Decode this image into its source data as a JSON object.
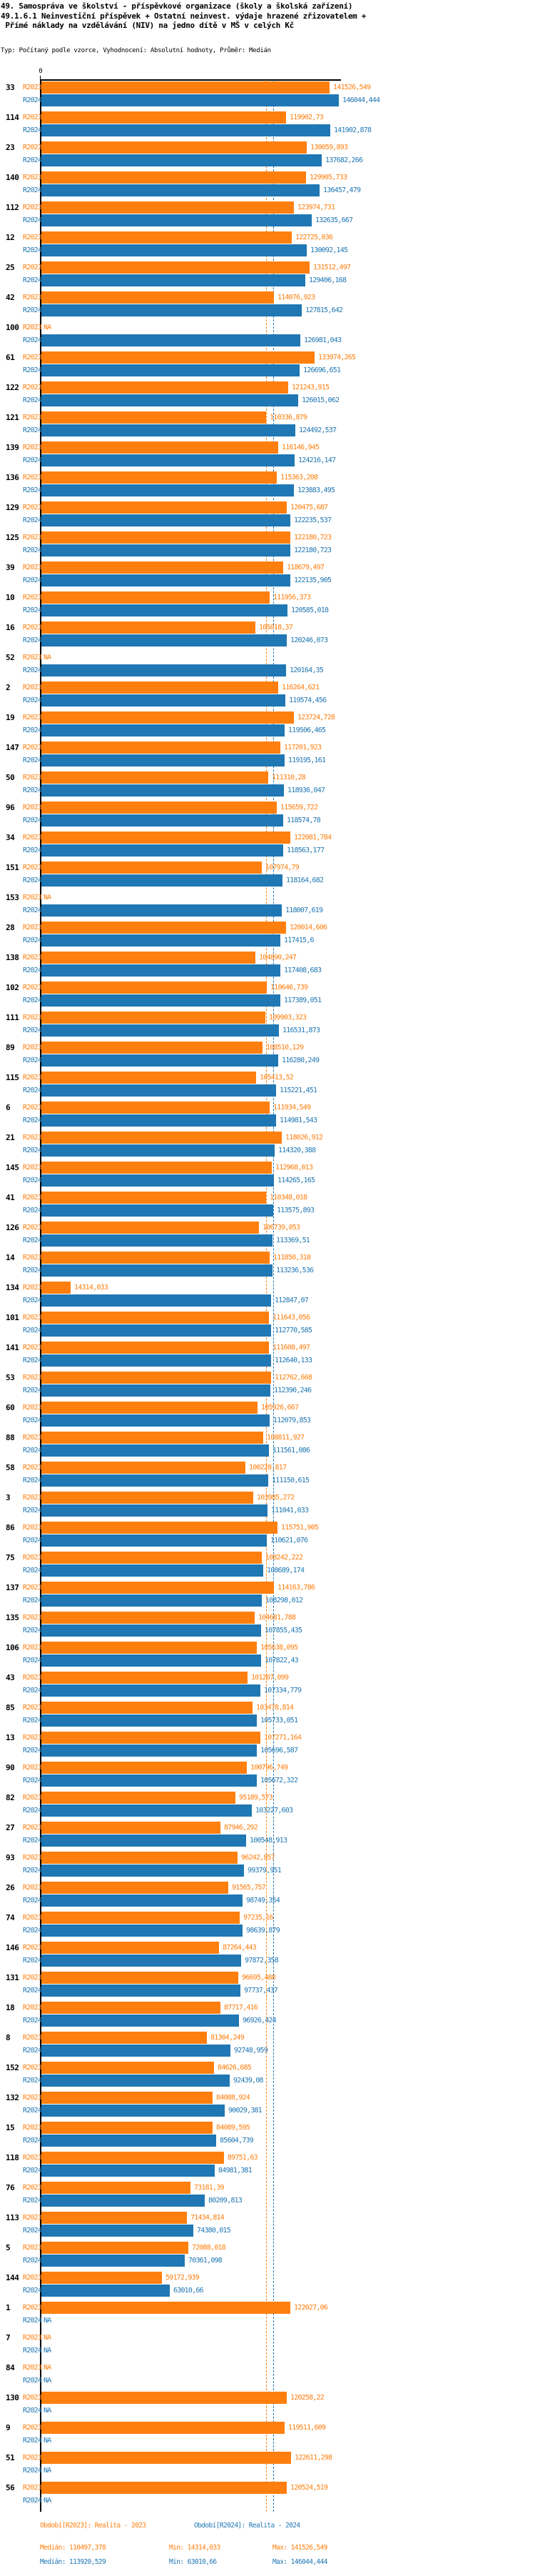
{
  "title": {
    "line1": "49. Samospráva ve školství - příspěvkové organizace (školy a školská zařízení)",
    "line2": "49.1.6.1 Neinvestiční příspěvek + Ostatní neinvest. výdaje hrazené zřizovatelem +",
    "line3": " Přímé náklady na vzdělávání (NIV) na jedno dítě v MŠ v celých Kč",
    "meta": "Typ: Počítaný podle vzorce, Vyhodnocení: Absolutní hodnoty, Průměr: Medián"
  },
  "axis": {
    "zero_label": "0"
  },
  "colors": {
    "r2023": "#ff7f0e",
    "r2024": "#1f77b4",
    "axis": "#000000"
  },
  "footer": {
    "period_r2023": "Období[R2023]: Realita - 2023",
    "period_r2024": "Období[R2024]: Realita - 2024",
    "r2023_median": "Medián: 110497,378",
    "r2023_min": "Min: 14314,033",
    "r2023_max": "Max: 141526,549",
    "r2024_median": "Medián: 113920,529",
    "r2024_min": "Min: 63010,66",
    "r2024_max": "Max: 146044,444"
  },
  "chart_data": {
    "type": "bar",
    "orientation": "horizontal",
    "series_names": [
      "R2023",
      "R2024"
    ],
    "legend_position": "bottom",
    "grid": false,
    "x_axis": {
      "min": 0,
      "tick_labels": [
        "0"
      ],
      "approx_max": 147400
    },
    "medians": {
      "R2023": 110497.378,
      "R2024": 113920.529
    },
    "stats": {
      "R2023": {
        "median": 110497.378,
        "min": 14314.033,
        "max": 141526.549
      },
      "R2024": {
        "median": 113920.529,
        "min": 63010.66,
        "max": 146044.444
      }
    },
    "rows": [
      {
        "id": "33",
        "r2023": "141526,549",
        "r2024": "146044,444"
      },
      {
        "id": "114",
        "r2023": "119902,73",
        "r2024": "141902,878"
      },
      {
        "id": "23",
        "r2023": "130059,893",
        "r2024": "137682,266"
      },
      {
        "id": "140",
        "r2023": "129905,733",
        "r2024": "136457,479"
      },
      {
        "id": "112",
        "r2023": "123974,731",
        "r2024": "132635,667"
      },
      {
        "id": "12",
        "r2023": "122725,036",
        "r2024": "130092,145"
      },
      {
        "id": "25",
        "r2023": "131512,497",
        "r2024": "129406,168"
      },
      {
        "id": "42",
        "r2023": "114076,923",
        "r2024": "127815,642"
      },
      {
        "id": "100",
        "r2023": "NA",
        "r2024": "126981,043"
      },
      {
        "id": "61",
        "r2023": "133974,265",
        "r2024": "126696,651"
      },
      {
        "id": "122",
        "r2023": "121243,915",
        "r2024": "126015,062"
      },
      {
        "id": "121",
        "r2023": "110336,879",
        "r2024": "124492,537"
      },
      {
        "id": "139",
        "r2023": "116146,945",
        "r2024": "124216,147"
      },
      {
        "id": "136",
        "r2023": "115363,208",
        "r2024": "123883,495"
      },
      {
        "id": "129",
        "r2023": "120475,687",
        "r2024": "122235,537"
      },
      {
        "id": "125",
        "r2023": "122180,723",
        "r2024": "122180,723"
      },
      {
        "id": "39",
        "r2023": "118679,497",
        "r2024": "122135,905"
      },
      {
        "id": "10",
        "r2023": "111956,373",
        "r2024": "120585,018"
      },
      {
        "id": "16",
        "r2023": "105018,37",
        "r2024": "120246,073"
      },
      {
        "id": "52",
        "r2023": "NA",
        "r2024": "120164,35"
      },
      {
        "id": "2",
        "r2023": "116264,621",
        "r2024": "119574,456"
      },
      {
        "id": "19",
        "r2023": "123724,728",
        "r2024": "119506,465"
      },
      {
        "id": "147",
        "r2023": "117201,923",
        "r2024": "119195,161"
      },
      {
        "id": "50",
        "r2023": "111310,28",
        "r2024": "118936,047"
      },
      {
        "id": "96",
        "r2023": "115659,722",
        "r2024": "118574,78"
      },
      {
        "id": "34",
        "r2023": "122081,784",
        "r2024": "118563,177"
      },
      {
        "id": "151",
        "r2023": "107974,79",
        "r2024": "118164,682"
      },
      {
        "id": "153",
        "r2023": "NA",
        "r2024": "118007,619"
      },
      {
        "id": "28",
        "r2023": "120014,606",
        "r2024": "117415,6"
      },
      {
        "id": "138",
        "r2023": "104890,247",
        "r2024": "117408,683"
      },
      {
        "id": "102",
        "r2023": "110646,739",
        "r2024": "117389,051"
      },
      {
        "id": "111",
        "r2023": "109903,323",
        "r2024": "116531,873"
      },
      {
        "id": "89",
        "r2023": "108510,129",
        "r2024": "116280,249"
      },
      {
        "id": "115",
        "r2023": "105413,52",
        "r2024": "115221,451"
      },
      {
        "id": "6",
        "r2023": "111934,549",
        "r2024": "114981,543"
      },
      {
        "id": "21",
        "r2023": "118026,912",
        "r2024": "114320,388"
      },
      {
        "id": "145",
        "r2023": "112968,013",
        "r2024": "114265,165"
      },
      {
        "id": "41",
        "r2023": "110348,018",
        "r2024": "113575,893"
      },
      {
        "id": "126",
        "r2023": "106739,053",
        "r2024": "113369,51"
      },
      {
        "id": "14",
        "r2023": "111850,318",
        "r2024": "113236,536"
      },
      {
        "id": "134",
        "r2023": "14314,033",
        "r2024": "112847,07"
      },
      {
        "id": "101",
        "r2023": "111643,056",
        "r2024": "112770,585"
      },
      {
        "id": "141",
        "r2023": "111608,497",
        "r2024": "112640,133"
      },
      {
        "id": "53",
        "r2023": "112762,668",
        "r2024": "112390,246"
      },
      {
        "id": "60",
        "r2023": "105926,667",
        "r2024": "112079,853"
      },
      {
        "id": "88",
        "r2023": "108811,927",
        "r2024": "111561,086"
      },
      {
        "id": "58",
        "r2023": "100228,817",
        "r2024": "111150,615"
      },
      {
        "id": "3",
        "r2023": "103985,272",
        "r2024": "111041,033"
      },
      {
        "id": "86",
        "r2023": "115751,905",
        "r2024": "110621,076"
      },
      {
        "id": "75",
        "r2023": "108242,222",
        "r2024": "108689,174"
      },
      {
        "id": "137",
        "r2023": "114163,786",
        "r2024": "108298,012"
      },
      {
        "id": "135",
        "r2023": "104681,788",
        "r2024": "107855,435"
      },
      {
        "id": "106",
        "r2023": "105638,095",
        "r2024": "107822,43"
      },
      {
        "id": "43",
        "r2023": "101207,099",
        "r2024": "107334,779"
      },
      {
        "id": "85",
        "r2023": "103478,814",
        "r2024": "105733,051"
      },
      {
        "id": "13",
        "r2023": "107271,164",
        "r2024": "105696,587"
      },
      {
        "id": "90",
        "r2023": "100796,749",
        "r2024": "105672,322"
      },
      {
        "id": "82",
        "r2023": "95189,573",
        "r2024": "103227,603"
      },
      {
        "id": "27",
        "r2023": "87946,292",
        "r2024": "100548,913"
      },
      {
        "id": "93",
        "r2023": "96242,857",
        "r2024": "99379,951"
      },
      {
        "id": "26",
        "r2023": "91565,757",
        "r2024": "98749,354"
      },
      {
        "id": "74",
        "r2023": "97235,16",
        "r2024": "98639,879"
      },
      {
        "id": "146",
        "r2023": "87264,443",
        "r2024": "97872,358"
      },
      {
        "id": "131",
        "r2023": "96695,488",
        "r2024": "97737,437"
      },
      {
        "id": "18",
        "r2023": "87717,416",
        "r2024": "96926,424"
      },
      {
        "id": "8",
        "r2023": "81304,249",
        "r2024": "92748,959"
      },
      {
        "id": "152",
        "r2023": "84626,685",
        "r2024": "92439,08"
      },
      {
        "id": "132",
        "r2023": "84088,924",
        "r2024": "90029,381"
      },
      {
        "id": "15",
        "r2023": "84089,595",
        "r2024": "85604,739"
      },
      {
        "id": "118",
        "r2023": "89751,63",
        "r2024": "84981,381"
      },
      {
        "id": "76",
        "r2023": "73181,39",
        "r2024": "80209,813"
      },
      {
        "id": "113",
        "r2023": "71434,814",
        "r2024": "74380,015"
      },
      {
        "id": "5",
        "r2023": "72088,018",
        "r2024": "70361,098"
      },
      {
        "id": "144",
        "r2023": "59172,939",
        "r2024": "63010,66"
      },
      {
        "id": "1",
        "r2023": "122027,06",
        "r2024": "NA"
      },
      {
        "id": "7",
        "r2023": "NA",
        "r2024": "NA"
      },
      {
        "id": "84",
        "r2023": "NA",
        "r2024": "NA"
      },
      {
        "id": "130",
        "r2023": "120258,22",
        "r2024": "NA"
      },
      {
        "id": "9",
        "r2023": "119511,609",
        "r2024": "NA"
      },
      {
        "id": "51",
        "r2023": "122611,298",
        "r2024": "NA"
      },
      {
        "id": "56",
        "r2023": "120524,519",
        "r2024": "NA"
      }
    ]
  }
}
